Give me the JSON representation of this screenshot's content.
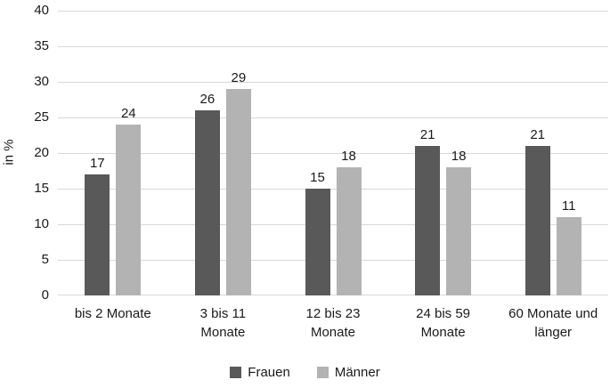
{
  "chart_data": {
    "type": "bar",
    "title": "",
    "xlabel": "",
    "ylabel": "in %",
    "categories": [
      "bis 2 Monate",
      "3 bis 11 Monate",
      "12 bis 23 Monate",
      "24 bis 59 Monate",
      "60 Monate und länger"
    ],
    "categories_wrapped": [
      [
        "bis 2 Monate"
      ],
      [
        "3 bis 11",
        "Monate"
      ],
      [
        "12 bis 23",
        "Monate"
      ],
      [
        "24 bis 59",
        "Monate"
      ],
      [
        "60 Monate und",
        "länger"
      ]
    ],
    "series": [
      {
        "name": "Frauen",
        "values": [
          17,
          26,
          15,
          21,
          21
        ],
        "color": "#595959"
      },
      {
        "name": "Männer",
        "values": [
          24,
          29,
          18,
          18,
          11
        ],
        "color": "#b3b3b3"
      }
    ],
    "ylim": [
      0,
      40
    ],
    "yticks": [
      0,
      5,
      10,
      15,
      20,
      25,
      30,
      35,
      40
    ],
    "grid": true,
    "legend_position": "bottom",
    "data_labels": true,
    "colors": {
      "gridline": "#d9d9d9",
      "axis_line": "#d9d9d9",
      "text": "#1a1a1a",
      "background": "#ffffff"
    }
  }
}
